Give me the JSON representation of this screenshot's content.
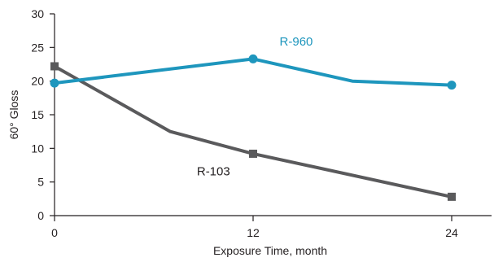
{
  "chart_data": {
    "type": "line",
    "title": "",
    "xlabel": "Exposure Time, month",
    "ylabel": "60° Gloss",
    "xlim": [
      0,
      24
    ],
    "ylim": [
      0,
      30
    ],
    "x_ticks": [
      0,
      12,
      24
    ],
    "y_ticks": [
      0,
      5,
      10,
      15,
      20,
      25,
      30
    ],
    "grid": false,
    "legend": "none",
    "series": [
      {
        "name": "R-960",
        "color": "#1e96bd",
        "marker": "circle",
        "points": [
          [
            0,
            19.7
          ],
          [
            12,
            23.3
          ],
          [
            18,
            20.0
          ],
          [
            24,
            19.4
          ]
        ],
        "marker_x": [
          0,
          12,
          24
        ]
      },
      {
        "name": "R-103",
        "color": "#5a5a5c",
        "marker": "square",
        "points": [
          [
            0,
            22.2
          ],
          [
            7,
            12.5
          ],
          [
            12,
            9.2
          ],
          [
            24,
            2.8
          ]
        ],
        "marker_x": [
          0,
          12,
          24
        ]
      }
    ],
    "annotations": [
      {
        "text": "R-960",
        "x": 13.6,
        "y": 25.3,
        "color": "#1e96bd"
      },
      {
        "text": "R-103",
        "x": 8.6,
        "y": 6.0,
        "color": "#231f20"
      }
    ]
  }
}
